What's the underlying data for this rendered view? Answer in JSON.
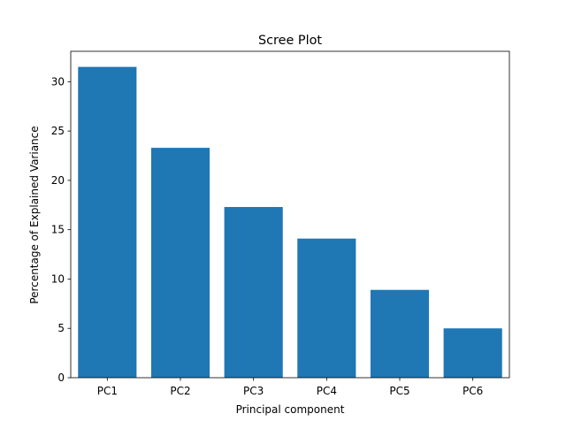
{
  "chart_data": {
    "type": "bar",
    "title": "Scree Plot",
    "xlabel": "Principal component",
    "ylabel": "Percentage of Explained Variance",
    "categories": [
      "PC1",
      "PC2",
      "PC3",
      "PC4",
      "PC5",
      "PC6"
    ],
    "values": [
      31.5,
      23.3,
      17.3,
      14.1,
      8.9,
      5.0
    ],
    "ylim": [
      0,
      33.08
    ],
    "yticks": [
      0,
      5,
      10,
      15,
      20,
      25,
      30
    ],
    "bar_color": "#1f77b4",
    "grid": false
  }
}
